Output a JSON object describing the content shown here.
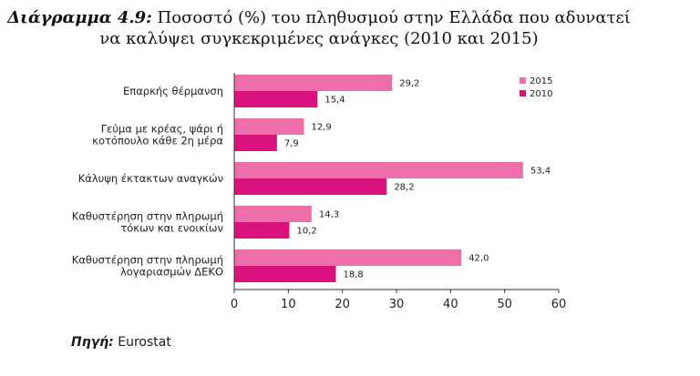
{
  "title": {
    "label": "Διάγραμμα 4.9:",
    "line1": "Ποσοστό (%) του πληθυσμού στην Ελλάδα που αδυνατεί",
    "line2": "να καλύψει συγκεκριμένες ανάγκες (2010 και 2015)"
  },
  "source": {
    "label": "Πηγή:",
    "value": "Eurostat"
  },
  "colors": {
    "series_2015": "#ee6eaa",
    "series_2010": "#d9127e",
    "axis": "#333333"
  },
  "chart_data": {
    "type": "bar",
    "orientation": "horizontal",
    "title": "Ποσοστό (%) του πληθυσμού στην Ελλάδα που αδυνατεί να καλύψει συγκεκριμένες ανάγκες (2010 και 2015)",
    "categories": [
      [
        "Επαρκής θέρμανση"
      ],
      [
        "Γεύμα με κρέας, ψάρι ή",
        "κοτόπουλο κάθε 2η μέρα"
      ],
      [
        "Κάλυψη έκτακτων αναγκών"
      ],
      [
        "Καθυστέρηση στην πληρωμή",
        "τόκων και ενοικίων"
      ],
      [
        "Καθυστέρηση στην πληρωμή",
        "λογαριασμών ΔΕΚΟ"
      ]
    ],
    "series": [
      {
        "name": "2015",
        "values": [
          29.2,
          12.9,
          53.4,
          14.3,
          42.0
        ],
        "labels": [
          "29,2",
          "12,9",
          "53,4",
          "14,3",
          "42,0"
        ]
      },
      {
        "name": "2010",
        "values": [
          15.4,
          7.9,
          28.2,
          10.2,
          18.8
        ],
        "labels": [
          "15,4",
          "7,9",
          "28,2",
          "10,2",
          "18,8"
        ]
      }
    ],
    "xlim": [
      0,
      60
    ],
    "xticks": [
      0,
      10,
      20,
      30,
      40,
      50,
      60
    ],
    "legend": "top-right",
    "grid": false
  }
}
